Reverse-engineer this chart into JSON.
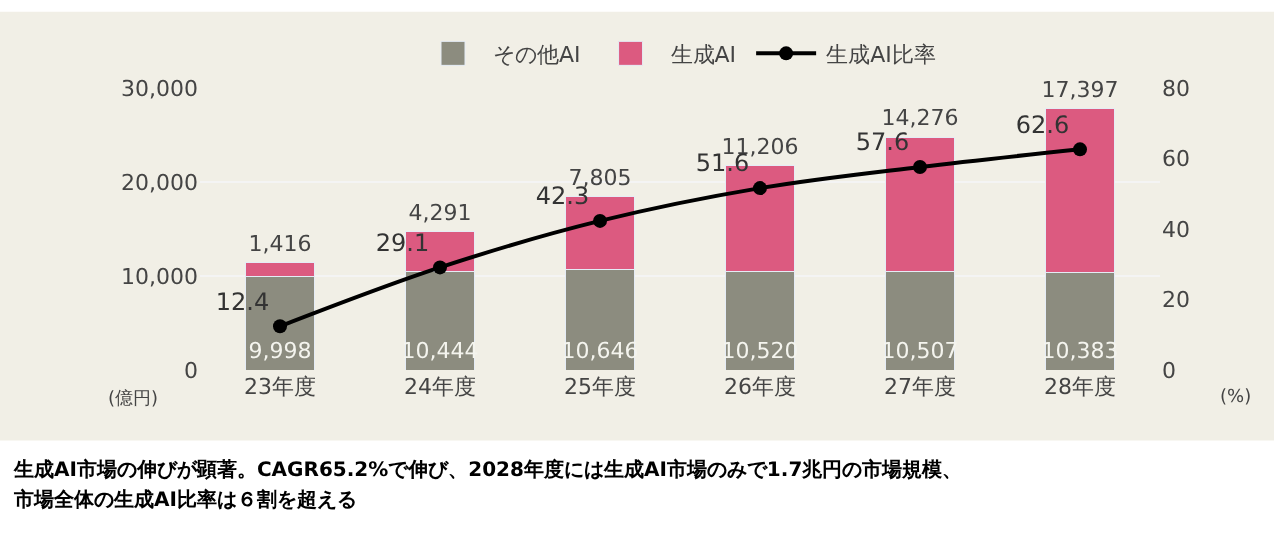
{
  "chart_data": {
    "type": "bar",
    "stacked": true,
    "categories": [
      "23年度",
      "24年度",
      "25年度",
      "26年度",
      "27年度",
      "28年度"
    ],
    "series": [
      {
        "name": "その他AI",
        "color": "#8c8c7f",
        "values": [
          9998,
          10444,
          10646,
          10520,
          10507,
          10383
        ],
        "value_labels": [
          "9,998",
          "10,444",
          "10,646",
          "10,520",
          "10,507",
          "10,383"
        ]
      },
      {
        "name": "生成AI",
        "color": "#dc5a80",
        "values": [
          1416,
          4291,
          7805,
          11206,
          14276,
          17397
        ],
        "value_labels": [
          "1,416",
          "4,291",
          "7,805",
          "11,206",
          "14,276",
          "17,397"
        ]
      },
      {
        "name": "生成AI比率",
        "type": "line",
        "axis": "y2",
        "color": "#000000",
        "marker": "circle",
        "values": [
          12.4,
          29.1,
          42.3,
          51.6,
          57.6,
          62.6
        ],
        "value_labels": [
          "12.4",
          "29.1",
          "42.3",
          "51.6",
          "57.6",
          "62.6"
        ]
      }
    ],
    "ylabel": "(億円)",
    "y2label": "(%)",
    "ylim": [
      0,
      30000
    ],
    "yticks": [
      0,
      {
        "value": 10000,
        "label": "10,000"
      },
      {
        "value": 20000,
        "label": "20,000"
      },
      {
        "value": 30000,
        "label": "30,000"
      }
    ],
    "y2lim": [
      0,
      80
    ],
    "y2ticks": [
      0,
      20,
      40,
      60,
      80
    ],
    "grid": "y",
    "legend": "top",
    "annotations": [
      "生成AI市場の伸びが顕著。CAGR65.2%で伸び、2028年度には生成AI市場のみで1.7兆円の市場規模、",
      "市場全体の生成AI比率は６割を超える"
    ]
  }
}
